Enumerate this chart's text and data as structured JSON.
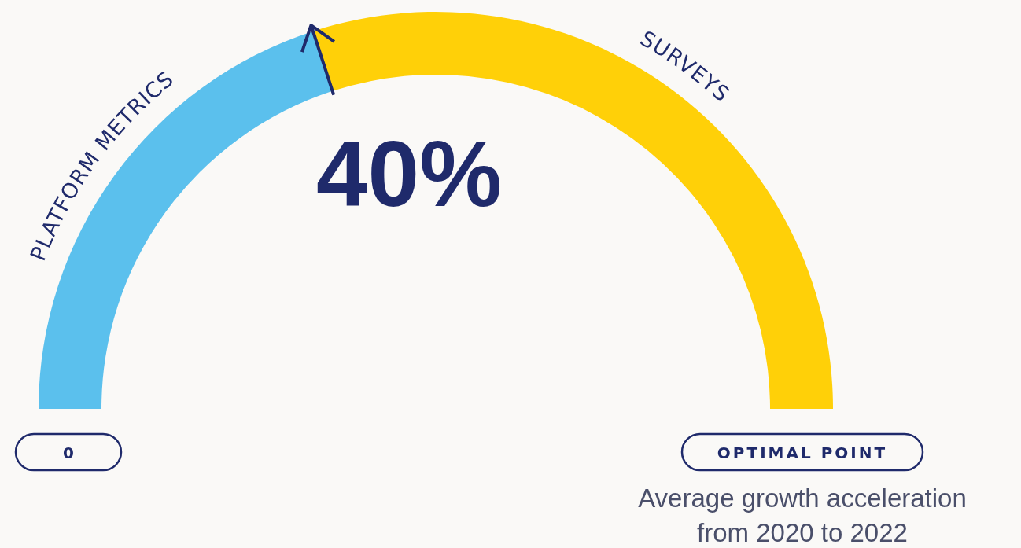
{
  "chart_data": {
    "type": "donut",
    "categories": [
      "PLATFORM METRICS",
      "SURVEYS"
    ],
    "values": [
      40,
      60
    ],
    "colors": [
      "#5bc0ed",
      "#ffd008"
    ],
    "value_labels": [
      "40%",
      null
    ],
    "annotations": [
      "0",
      "OPTIMAL POINT",
      "Average growth acceleration from 2020 to 2022"
    ]
  }
}
